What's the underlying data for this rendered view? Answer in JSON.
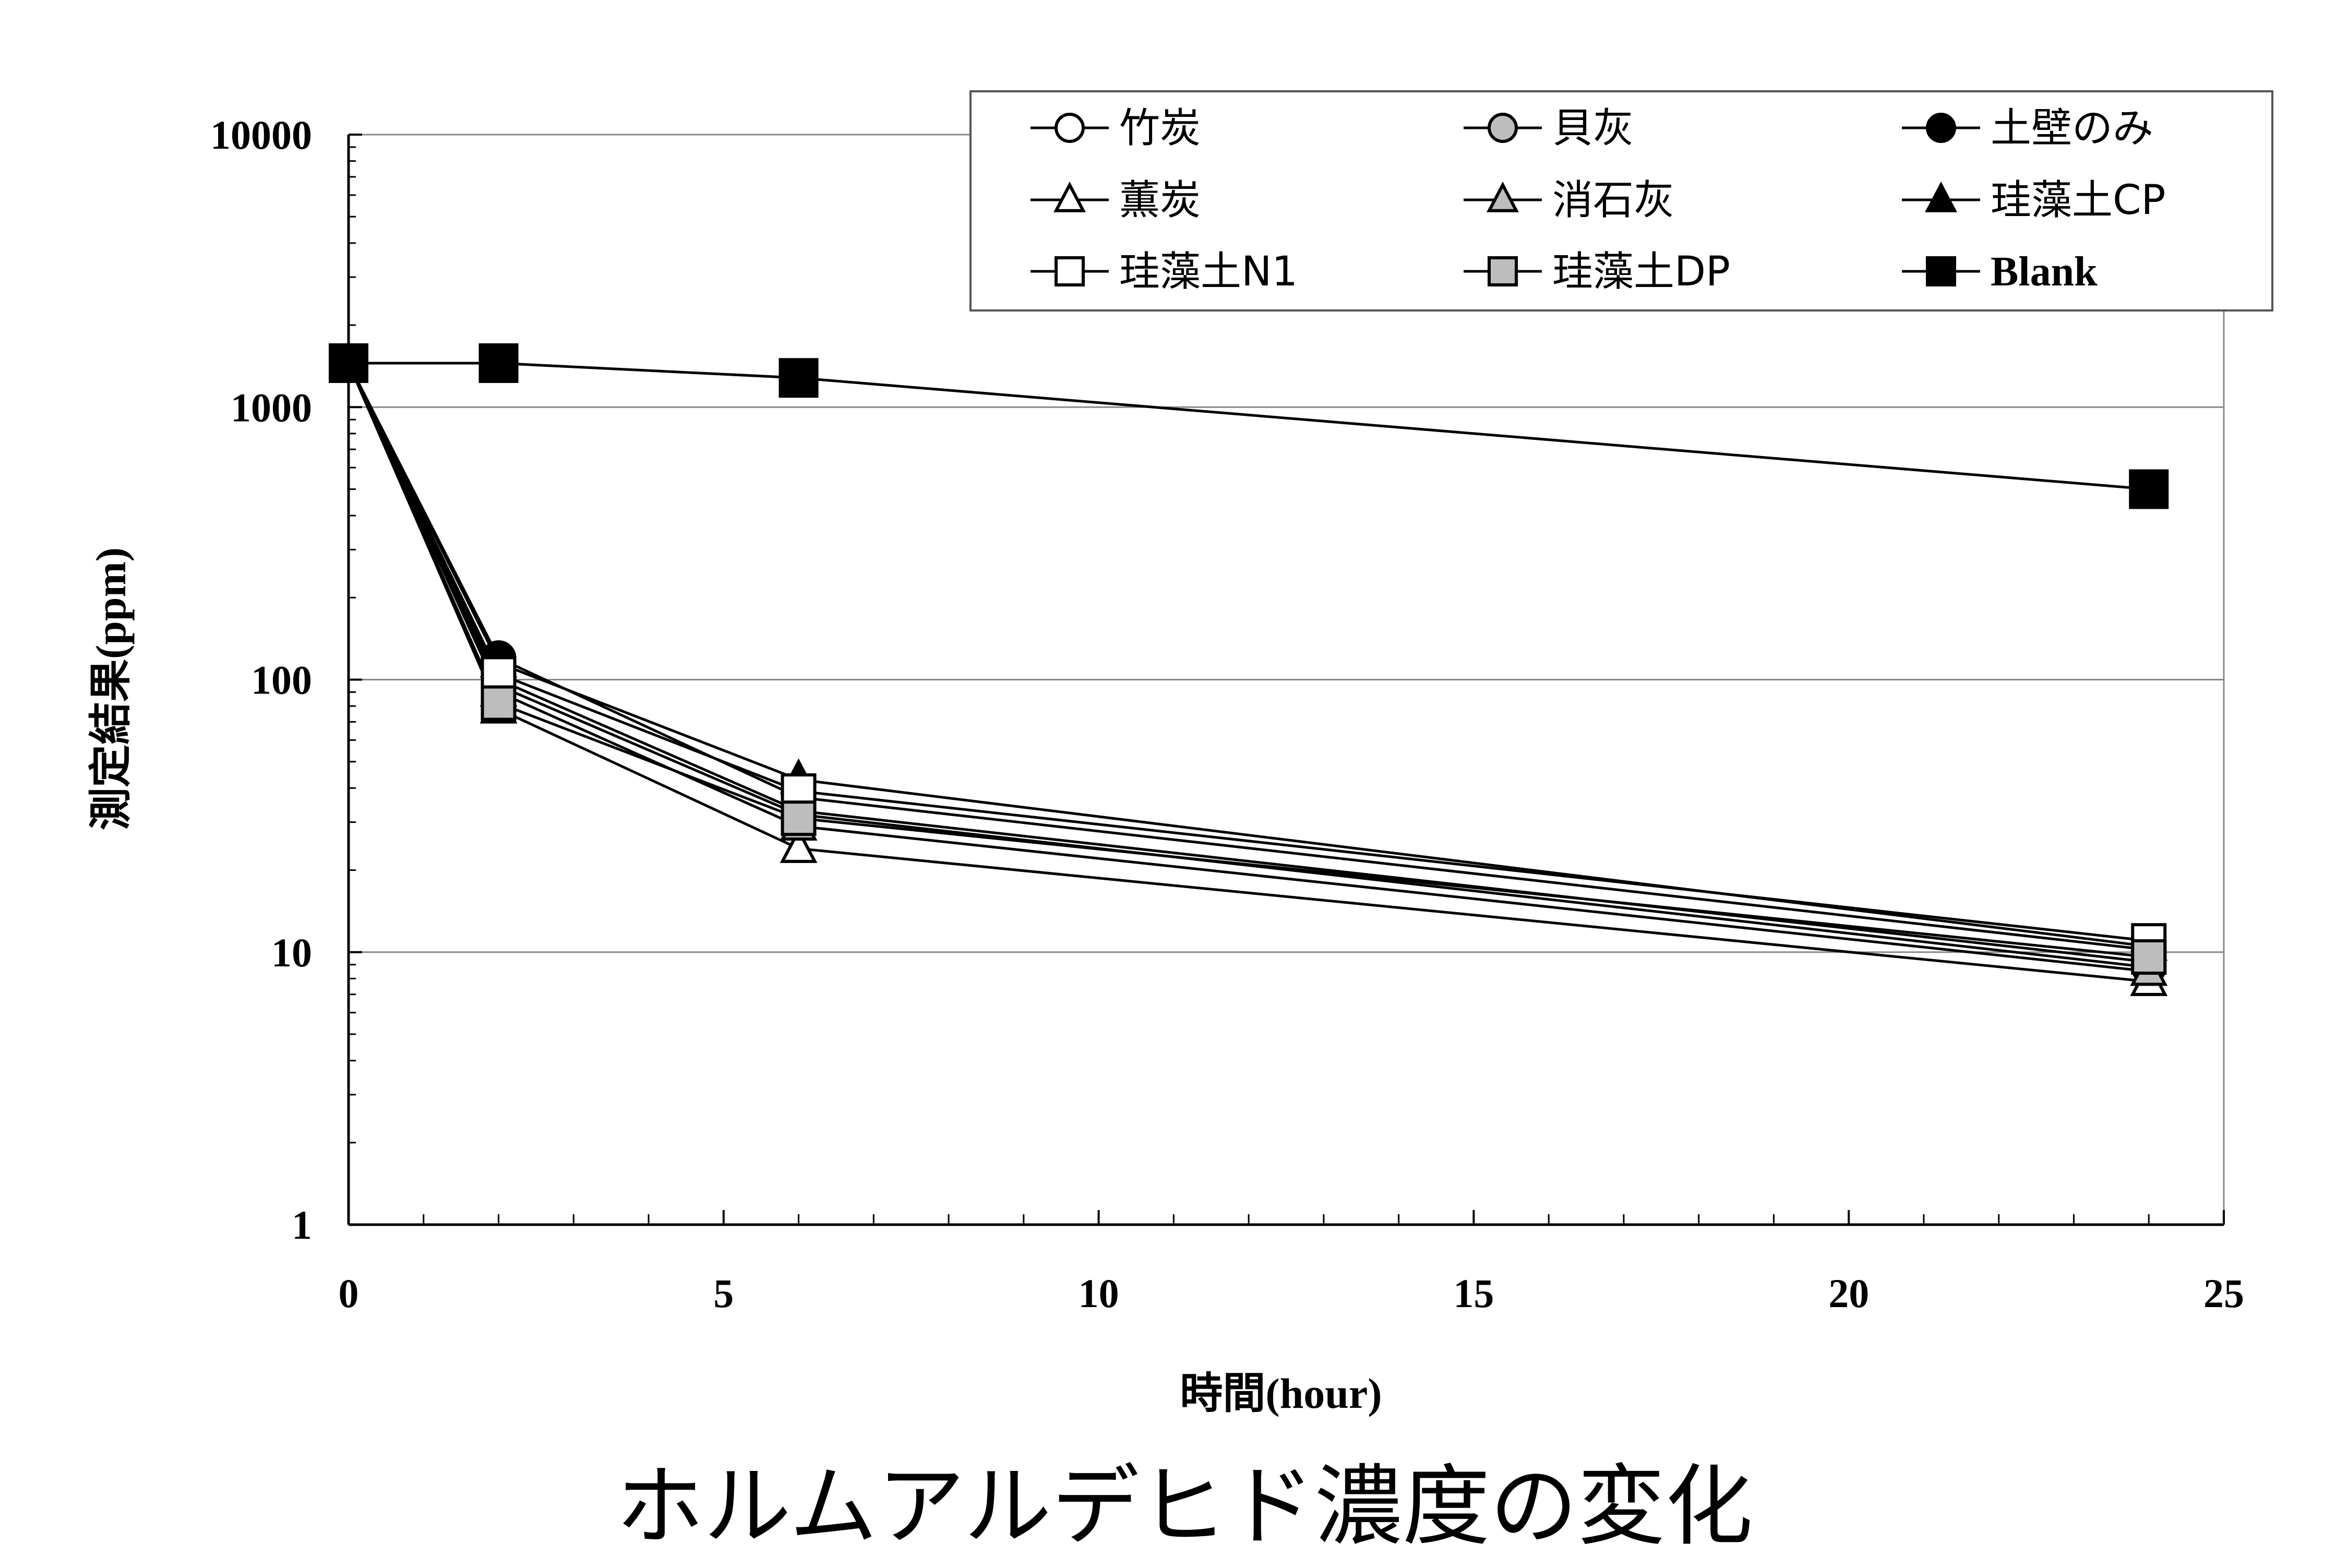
{
  "chart_data": {
    "type": "line",
    "caption": "ホルムアルデヒド濃度の変化",
    "xlabel": "時間(hour)",
    "ylabel": "測定結果(ppm)",
    "x": [
      0,
      2,
      6,
      24
    ],
    "xlim": [
      0,
      25
    ],
    "ylim": [
      1,
      10000
    ],
    "y_scale": "log",
    "x_ticks": [
      0,
      5,
      10,
      15,
      20,
      25
    ],
    "y_ticks": [
      1,
      10,
      100,
      1000,
      10000
    ],
    "y_tick_labels": [
      "1",
      "10",
      "100",
      "1000",
      "10000"
    ],
    "x_tick_labels": [
      "0",
      "5",
      "10",
      "15",
      "20",
      "25"
    ],
    "grid": "horizontal major",
    "legend_position": "top-right",
    "series": [
      {
        "name": "竹炭",
        "marker": "circle",
        "fill": "white",
        "values": [
          1450,
          95,
          32,
          8.8
        ]
      },
      {
        "name": "貝灰",
        "marker": "circle",
        "fill": "gray",
        "values": [
          1450,
          100,
          33,
          9.2
        ]
      },
      {
        "name": "土壁のみ",
        "marker": "circle",
        "fill": "black",
        "values": [
          1450,
          120,
          37,
          10.2
        ]
      },
      {
        "name": "薫炭",
        "marker": "triangle",
        "fill": "white",
        "values": [
          1450,
          78,
          24,
          7.8
        ]
      },
      {
        "name": "消石灰",
        "marker": "triangle",
        "fill": "gray",
        "values": [
          1450,
          90,
          29,
          8.5
        ]
      },
      {
        "name": "珪藻土CP",
        "marker": "triangle",
        "fill": "black",
        "values": [
          1450,
          115,
          43,
          10.5
        ]
      },
      {
        "name": "珪藻土N1",
        "marker": "square",
        "fill": "white",
        "values": [
          1450,
          105,
          39,
          11
        ]
      },
      {
        "name": "珪藻土DP",
        "marker": "square",
        "fill": "gray",
        "values": [
          1450,
          82,
          31,
          9.6
        ]
      },
      {
        "name": "Blank",
        "marker": "square",
        "fill": "black",
        "values": [
          1450,
          1450,
          1280,
          500
        ]
      }
    ]
  }
}
